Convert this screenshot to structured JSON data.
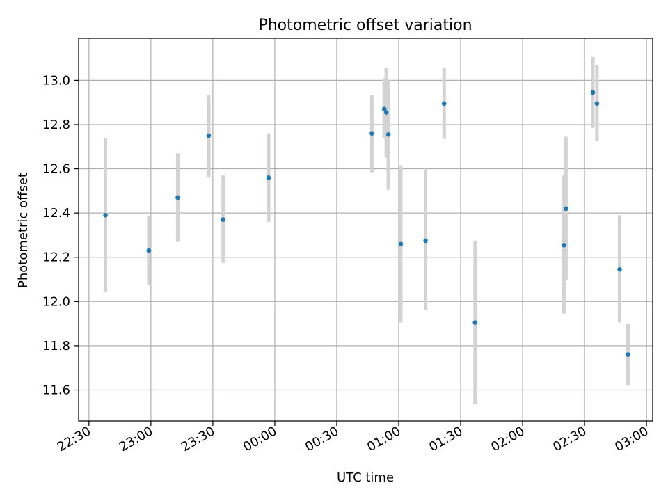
{
  "chart_data": {
    "type": "scatter",
    "title": "Photometric offset variation",
    "xlabel": "UTC time",
    "ylabel": "Photometric offset",
    "xlim": [
      "22:25",
      "03:03"
    ],
    "ylim": [
      11.46,
      13.19
    ],
    "x_ticks": [
      "22:30",
      "23:00",
      "23:30",
      "00:00",
      "00:30",
      "01:00",
      "01:30",
      "02:00",
      "02:30",
      "03:00"
    ],
    "y_ticks": [
      "11.6",
      "11.8",
      "12.0",
      "12.2",
      "12.4",
      "12.6",
      "12.8",
      "13.0"
    ],
    "grid": true,
    "colors": {
      "points": "#1f77b4",
      "error_bars": "#d3d3d3",
      "grid": "#b0b0b0"
    },
    "series": [
      {
        "points": [
          {
            "x": "22:38",
            "y": 12.39,
            "y_low": 12.045,
            "y_high": 12.74
          },
          {
            "x": "22:59",
            "y": 12.23,
            "y_low": 12.075,
            "y_high": 12.385
          },
          {
            "x": "23:13",
            "y": 12.47,
            "y_low": 12.27,
            "y_high": 12.67
          },
          {
            "x": "23:28",
            "y": 12.75,
            "y_low": 12.56,
            "y_high": 12.935
          },
          {
            "x": "23:35",
            "y": 12.37,
            "y_low": 12.175,
            "y_high": 12.57
          },
          {
            "x": "23:57",
            "y": 12.56,
            "y_low": 12.36,
            "y_high": 12.76
          },
          {
            "x": "00:47",
            "y": 12.76,
            "y_low": 12.585,
            "y_high": 12.935
          },
          {
            "x": "00:53",
            "y": 12.87,
            "y_low": 12.74,
            "y_high": 13.01
          },
          {
            "x": "00:54",
            "y": 12.855,
            "y_low": 12.65,
            "y_high": 13.055
          },
          {
            "x": "00:55",
            "y": 12.755,
            "y_low": 12.505,
            "y_high": 13.0
          },
          {
            "x": "01:01",
            "y": 12.26,
            "y_low": 11.905,
            "y_high": 12.615
          },
          {
            "x": "01:13",
            "y": 12.275,
            "y_low": 11.96,
            "y_high": 12.6
          },
          {
            "x": "01:22",
            "y": 12.895,
            "y_low": 12.735,
            "y_high": 13.055
          },
          {
            "x": "01:37",
            "y": 11.905,
            "y_low": 11.535,
            "y_high": 12.275
          },
          {
            "x": "02:20",
            "y": 12.255,
            "y_low": 11.945,
            "y_high": 12.57
          },
          {
            "x": "02:21",
            "y": 12.42,
            "y_low": 12.095,
            "y_high": 12.745
          },
          {
            "x": "02:34",
            "y": 12.945,
            "y_low": 12.785,
            "y_high": 13.105
          },
          {
            "x": "02:36",
            "y": 12.895,
            "y_low": 12.725,
            "y_high": 13.07
          },
          {
            "x": "02:47",
            "y": 12.145,
            "y_low": 11.905,
            "y_high": 12.39
          },
          {
            "x": "02:51",
            "y": 11.76,
            "y_low": 11.62,
            "y_high": 11.9
          }
        ]
      }
    ]
  }
}
